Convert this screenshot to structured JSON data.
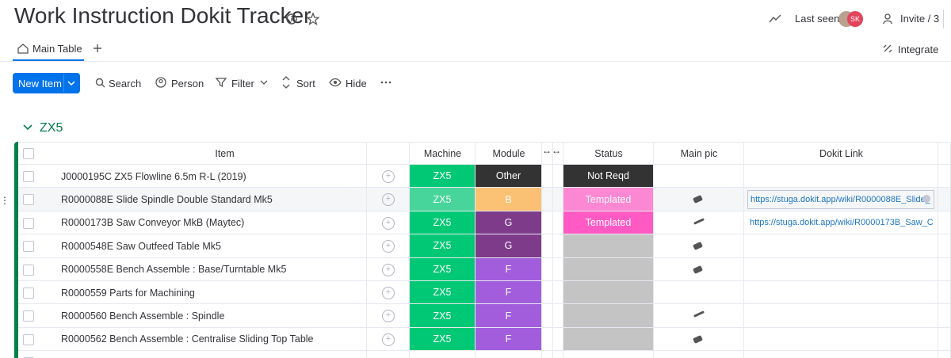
{
  "header": {
    "title": "Work Instruction Dokit Tracker",
    "last_seen": "Last seen",
    "avatar": "SK",
    "invite": "Invite / 3",
    "integrate": "Integrate"
  },
  "tabs": {
    "main": "Main Table"
  },
  "toolbar": {
    "new_item": "New Item",
    "search": "Search",
    "person": "Person",
    "filter": "Filter",
    "sort": "Sort",
    "hide": "Hide"
  },
  "group": {
    "name": "ZX5",
    "color": "#037f4c"
  },
  "table": {
    "columns": {
      "item": "Item",
      "machine": "Machine",
      "module": "Module",
      "status": "Status",
      "pic": "Main pic",
      "link": "Dokit Link"
    },
    "rows": [
      {
        "item": "J0000195C ZX5 Flowline 6.5m R-L (2019)",
        "machine": {
          "label": "ZX5",
          "color": "#00c875"
        },
        "module": {
          "label": "Other",
          "color": "#333333"
        },
        "status": {
          "label": "Not Reqd",
          "color": "#333333"
        },
        "link": null
      },
      {
        "item": "R0000088E Slide Spindle Double Standard Mk5",
        "machine": {
          "label": "ZX5",
          "color": "#00c875"
        },
        "module": {
          "label": "B",
          "color": "#fdab3d"
        },
        "status": {
          "label": "Templated",
          "color": "#ff5ac4"
        },
        "link": "https://stuga.dokit.app/wiki/R0000088E_Slide_"
      },
      {
        "item": "R0000173B Saw Conveyor MkB (Maytec)",
        "machine": {
          "label": "ZX5",
          "color": "#00c875"
        },
        "module": {
          "label": "G",
          "color": "#7e3b8a"
        },
        "status": {
          "label": "Templated",
          "color": "#ff5ac4"
        },
        "link": "https://stuga.dokit.app/wiki/R0000173B_Saw_C..."
      },
      {
        "item": "R0000548E Saw Outfeed Table Mk5",
        "machine": {
          "label": "ZX5",
          "color": "#00c875"
        },
        "module": {
          "label": "G",
          "color": "#7e3b8a"
        },
        "status": {
          "label": null,
          "color": "#c4c4c4"
        },
        "link": null
      },
      {
        "item": "R0000558E Bench Assemble : Base/Turntable Mk5",
        "machine": {
          "label": "ZX5",
          "color": "#00c875"
        },
        "module": {
          "label": "F",
          "color": "#a25ddc"
        },
        "status": {
          "label": null,
          "color": "#c4c4c4"
        },
        "link": null
      },
      {
        "item": "R0000559 Parts for Machining",
        "machine": {
          "label": "ZX5",
          "color": "#00c875"
        },
        "module": {
          "label": "F",
          "color": "#a25ddc"
        },
        "status": {
          "label": null,
          "color": "#c4c4c4"
        },
        "link": null
      },
      {
        "item": "R0000560 Bench Assemble : Spindle",
        "machine": {
          "label": "ZX5",
          "color": "#00c875"
        },
        "module": {
          "label": "F",
          "color": "#a25ddc"
        },
        "status": {
          "label": null,
          "color": "#c4c4c4"
        },
        "link": null
      },
      {
        "item": "R0000562 Bench Assemble : Centralise Sliding Top Table",
        "machine": {
          "label": "ZX5",
          "color": "#00c875"
        },
        "module": {
          "label": "F",
          "color": "#a25ddc"
        },
        "status": {
          "label": null,
          "color": "#c4c4c4"
        },
        "link": null
      }
    ]
  }
}
